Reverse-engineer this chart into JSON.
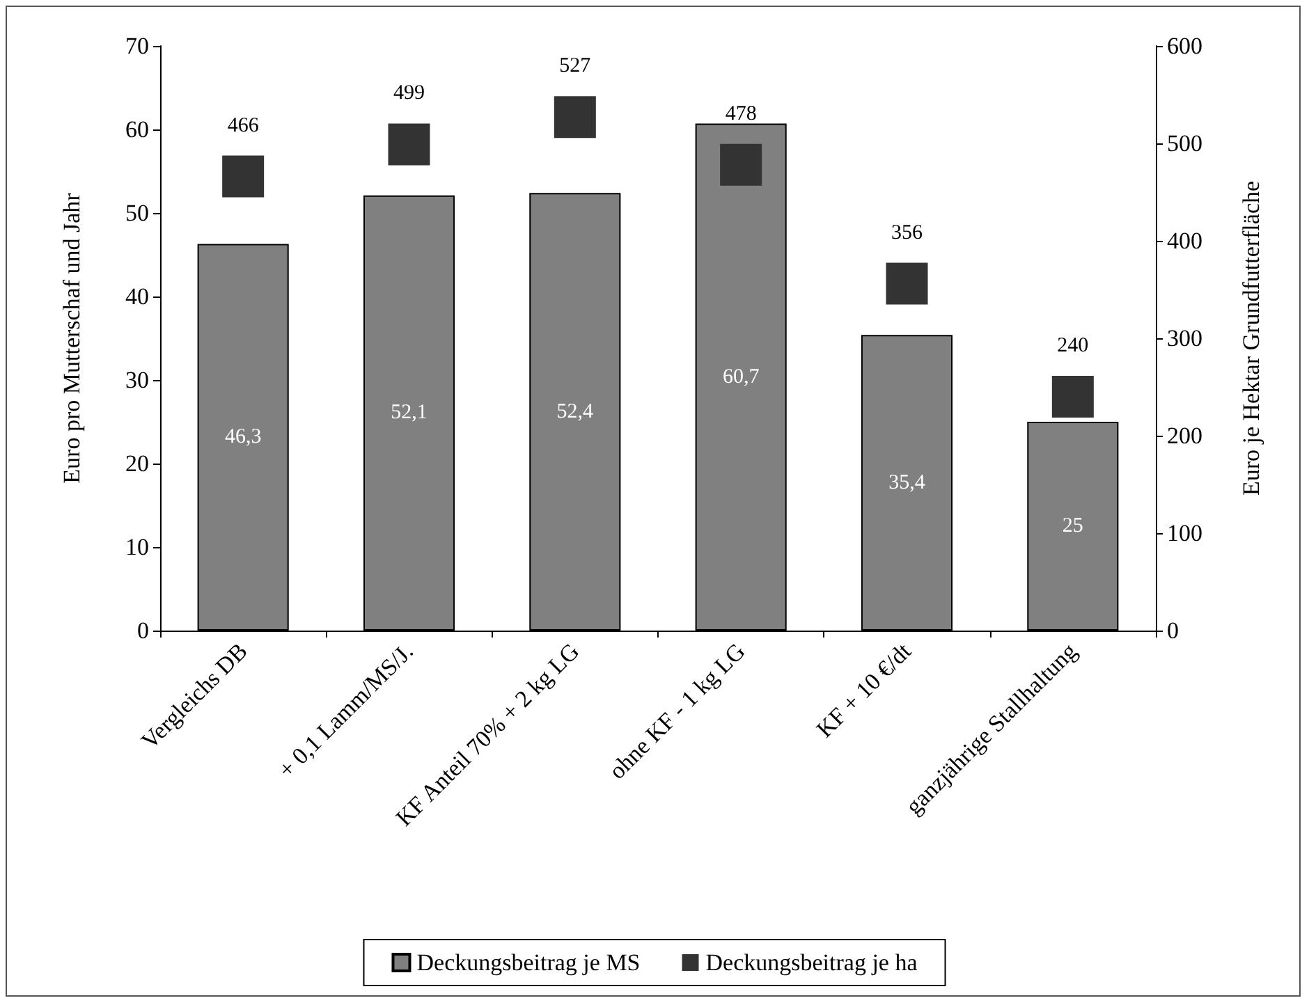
{
  "chart_data": {
    "type": "bar",
    "ylabel": "Euro pro Mutterschaf und Jahr",
    "y2label": "Euro je Hektar Grundfutterfläche",
    "categories": [
      "Vergleichs DB",
      "+ 0,1 Lamm/MS/J.",
      "KF Anteil 70% + 2 kg LG",
      "ohne KF - 1 kg LG",
      "KF + 10 €/dt",
      "ganzjährige Stallhaltung"
    ],
    "series": [
      {
        "name": "Deckungsbeitrag je MS",
        "color": "#808080",
        "values": [
          46.3,
          52.1,
          52.4,
          60.7,
          35.4,
          25
        ],
        "value_labels": [
          "46,3",
          "52,1",
          "52,4",
          "60,7",
          "35,4",
          "25"
        ]
      },
      {
        "name": "Deckungsbeitrag je ha",
        "type": "scatter",
        "axis": "y2",
        "marker": "square",
        "color": "#333333",
        "values": [
          466,
          499,
          527,
          478,
          356,
          240
        ],
        "value_labels": [
          "466",
          "499",
          "527",
          "478",
          "356",
          "240"
        ]
      }
    ],
    "ylim": [
      0,
      70
    ],
    "yticks": [
      0,
      10,
      20,
      30,
      40,
      50,
      60,
      70
    ],
    "y2lim": [
      0,
      600
    ],
    "y2ticks": [
      0,
      100,
      200,
      300,
      400,
      500,
      600
    ],
    "grid": false,
    "legend": "bottom"
  }
}
